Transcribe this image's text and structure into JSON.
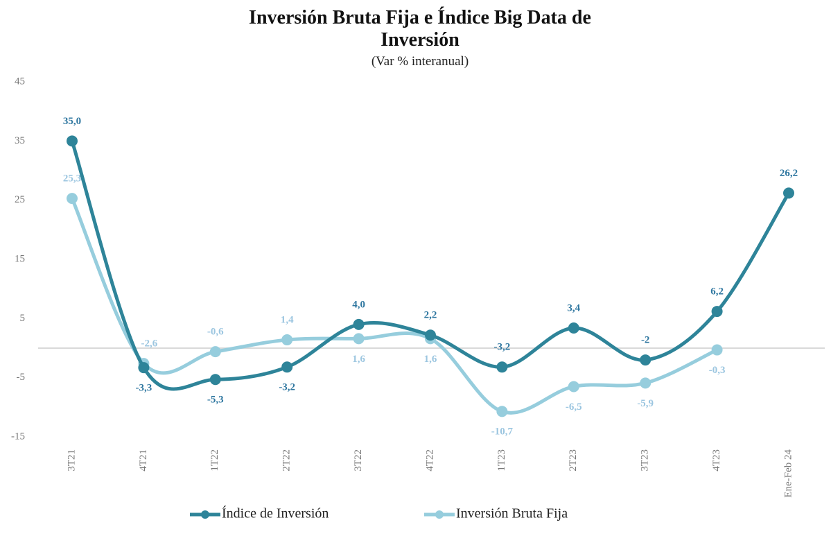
{
  "chart_data": {
    "type": "line",
    "title": "Inversión Bruta Fija e Índice Big Data de Inversión",
    "subtitle": "(Var % interanual)",
    "categories": [
      "3T21",
      "4T21",
      "1T22",
      "2T22",
      "3T22",
      "4T22",
      "1T23",
      "2T23",
      "3T23",
      "4T23",
      "Ene-Feb 24"
    ],
    "series": [
      {
        "name": "Índice de Inversión",
        "color": "#2e8499",
        "values": [
          35.0,
          -3.3,
          -5.3,
          -3.2,
          4.0,
          2.2,
          -3.2,
          3.4,
          -2,
          6.2,
          26.2
        ],
        "value_labels": [
          "35,0",
          "-3,3",
          "-5,3",
          "-3,2",
          "4,0",
          "2,2",
          "-3,2",
          "3,4",
          "-2",
          "6,2",
          "26,2"
        ]
      },
      {
        "name": "Inversión Bruta Fija",
        "color": "#96cddd",
        "values": [
          25.3,
          -2.6,
          -0.6,
          1.4,
          1.6,
          1.6,
          -10.7,
          -6.5,
          -5.9,
          -0.3,
          null
        ],
        "value_labels": [
          "25,3",
          "-2,6",
          "-0,6",
          "1,4",
          "1,6",
          "1,6",
          "-10,7",
          "-6,5",
          "-5,9",
          "-0,3",
          null
        ]
      }
    ],
    "ylim": [
      -15,
      45
    ],
    "yticks": [
      -15,
      -5,
      5,
      15,
      25,
      35,
      45
    ],
    "grid": false
  }
}
